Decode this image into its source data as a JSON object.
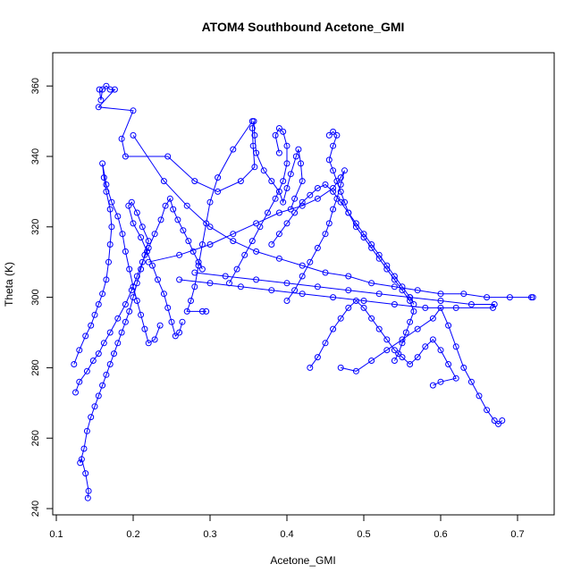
{
  "chart_data": {
    "type": "scatter",
    "title": "ATOM4 Southbound Acetone_GMI",
    "xlabel": "Acetone_GMI",
    "ylabel": "Theta (K)",
    "xlim": [
      0.1,
      0.72
    ],
    "ylim": [
      240,
      365
    ],
    "xticks": [
      "0.1",
      "0.2",
      "0.3",
      "0.4",
      "0.5",
      "0.6",
      "0.7"
    ],
    "yticks": [
      "240",
      "260",
      "280",
      "300",
      "320",
      "340",
      "360"
    ],
    "grid": false,
    "point_marker": "open-circle",
    "line_connects_points": true,
    "color": "#0000ff",
    "series": [
      {
        "values": [
          [
            0.141,
            243
          ],
          [
            0.142,
            245
          ],
          [
            0.138,
            250
          ],
          [
            0.133,
            254
          ],
          [
            0.131,
            253
          ],
          [
            0.136,
            257
          ],
          [
            0.14,
            262
          ],
          [
            0.145,
            266
          ],
          [
            0.15,
            269
          ],
          [
            0.155,
            272
          ],
          [
            0.16,
            275
          ],
          [
            0.165,
            278
          ],
          [
            0.17,
            281
          ],
          [
            0.175,
            284
          ],
          [
            0.18,
            287
          ],
          [
            0.185,
            290
          ],
          [
            0.19,
            293
          ],
          [
            0.195,
            296
          ],
          [
            0.2,
            300
          ],
          [
            0.205,
            304
          ],
          [
            0.21,
            308
          ],
          [
            0.215,
            312
          ],
          [
            0.22,
            316
          ],
          [
            0.212,
            320
          ],
          [
            0.205,
            324
          ],
          [
            0.198,
            327
          ],
          [
            0.194,
            326
          ],
          [
            0.2,
            321
          ],
          [
            0.21,
            317
          ],
          [
            0.218,
            313
          ],
          [
            0.225,
            309
          ],
          [
            0.232,
            305
          ],
          [
            0.24,
            301
          ],
          [
            0.245,
            297
          ],
          [
            0.25,
            293
          ],
          [
            0.255,
            289
          ],
          [
            0.26,
            290
          ],
          [
            0.264,
            293
          ]
        ]
      },
      {
        "values": [
          [
            0.125,
            273
          ],
          [
            0.13,
            276
          ],
          [
            0.14,
            279
          ],
          [
            0.148,
            282
          ],
          [
            0.155,
            284
          ],
          [
            0.162,
            287
          ],
          [
            0.17,
            290
          ],
          [
            0.18,
            294
          ],
          [
            0.19,
            298
          ],
          [
            0.198,
            302
          ],
          [
            0.205,
            306
          ],
          [
            0.212,
            310
          ],
          [
            0.22,
            314
          ],
          [
            0.228,
            318
          ],
          [
            0.236,
            322
          ],
          [
            0.242,
            326
          ],
          [
            0.248,
            328
          ],
          [
            0.252,
            325
          ],
          [
            0.258,
            322
          ],
          [
            0.265,
            319
          ],
          [
            0.272,
            316
          ],
          [
            0.278,
            313
          ],
          [
            0.285,
            310
          ],
          [
            0.29,
            308
          ]
        ]
      },
      {
        "values": [
          [
            0.123,
            281
          ],
          [
            0.13,
            285
          ],
          [
            0.138,
            289
          ],
          [
            0.145,
            292
          ],
          [
            0.15,
            295
          ],
          [
            0.155,
            298
          ],
          [
            0.16,
            301
          ],
          [
            0.165,
            305
          ],
          [
            0.168,
            310
          ],
          [
            0.17,
            315
          ],
          [
            0.172,
            320
          ],
          [
            0.17,
            325
          ],
          [
            0.165,
            330
          ],
          [
            0.162,
            334
          ],
          [
            0.16,
            338
          ],
          [
            0.165,
            332
          ],
          [
            0.172,
            327
          ],
          [
            0.18,
            323
          ],
          [
            0.186,
            318
          ],
          [
            0.19,
            313
          ],
          [
            0.195,
            308
          ],
          [
            0.2,
            303
          ],
          [
            0.205,
            299
          ],
          [
            0.21,
            295
          ],
          [
            0.215,
            291
          ],
          [
            0.22,
            287
          ],
          [
            0.228,
            288
          ],
          [
            0.235,
            292
          ]
        ]
      },
      {
        "values": [
          [
            0.156,
            359
          ],
          [
            0.158,
            356
          ],
          [
            0.16,
            359
          ],
          [
            0.165,
            360
          ],
          [
            0.17,
            359
          ],
          [
            0.176,
            359
          ],
          [
            0.155,
            354
          ],
          [
            0.2,
            353
          ],
          [
            0.185,
            345
          ],
          [
            0.19,
            340
          ],
          [
            0.245,
            340
          ],
          [
            0.28,
            333
          ],
          [
            0.31,
            330
          ],
          [
            0.34,
            333
          ],
          [
            0.358,
            337
          ],
          [
            0.356,
            343
          ],
          [
            0.355,
            348
          ],
          [
            0.357,
            350
          ],
          [
            0.358,
            346
          ],
          [
            0.36,
            341
          ],
          [
            0.37,
            336
          ],
          [
            0.38,
            333
          ],
          [
            0.39,
            330
          ],
          [
            0.395,
            327
          ],
          [
            0.4,
            331
          ],
          [
            0.405,
            335
          ],
          [
            0.412,
            340
          ],
          [
            0.415,
            342
          ],
          [
            0.418,
            338
          ],
          [
            0.42,
            333
          ],
          [
            0.41,
            328
          ],
          [
            0.405,
            325
          ]
        ]
      },
      {
        "values": [
          [
            0.2,
            346
          ],
          [
            0.24,
            333
          ],
          [
            0.27,
            326
          ],
          [
            0.3,
            320
          ],
          [
            0.33,
            316
          ],
          [
            0.36,
            313
          ],
          [
            0.39,
            311
          ],
          [
            0.42,
            309
          ],
          [
            0.45,
            307
          ],
          [
            0.48,
            306
          ],
          [
            0.51,
            304
          ],
          [
            0.54,
            303
          ],
          [
            0.57,
            302
          ],
          [
            0.6,
            301
          ],
          [
            0.63,
            301
          ],
          [
            0.66,
            300
          ],
          [
            0.69,
            300
          ],
          [
            0.72,
            300
          ],
          [
            0.718,
            300
          ]
        ]
      },
      {
        "values": [
          [
            0.28,
            307
          ],
          [
            0.32,
            306
          ],
          [
            0.36,
            305
          ],
          [
            0.4,
            304
          ],
          [
            0.44,
            303
          ],
          [
            0.48,
            302
          ],
          [
            0.52,
            301
          ],
          [
            0.56,
            300
          ],
          [
            0.6,
            299
          ],
          [
            0.64,
            298
          ],
          [
            0.67,
            298
          ],
          [
            0.668,
            297
          ],
          [
            0.62,
            297
          ],
          [
            0.58,
            297
          ],
          [
            0.54,
            298
          ],
          [
            0.5,
            299
          ],
          [
            0.46,
            300
          ],
          [
            0.42,
            301
          ],
          [
            0.38,
            302
          ],
          [
            0.34,
            303
          ],
          [
            0.3,
            304
          ],
          [
            0.26,
            305
          ]
        ]
      },
      {
        "values": [
          [
            0.22,
            310
          ],
          [
            0.26,
            312
          ],
          [
            0.3,
            315
          ],
          [
            0.33,
            318
          ],
          [
            0.36,
            321
          ],
          [
            0.39,
            324
          ],
          [
            0.42,
            326
          ],
          [
            0.44,
            328
          ],
          [
            0.46,
            331
          ],
          [
            0.47,
            334
          ],
          [
            0.475,
            336
          ],
          [
            0.47,
            332
          ],
          [
            0.465,
            328
          ],
          [
            0.46,
            325
          ],
          [
            0.455,
            321
          ],
          [
            0.45,
            318
          ],
          [
            0.44,
            314
          ],
          [
            0.43,
            310
          ],
          [
            0.42,
            306
          ],
          [
            0.41,
            302
          ],
          [
            0.4,
            299
          ]
        ]
      },
      {
        "values": [
          [
            0.455,
            346
          ],
          [
            0.46,
            347
          ],
          [
            0.465,
            346
          ],
          [
            0.46,
            343
          ],
          [
            0.455,
            339
          ],
          [
            0.46,
            336
          ],
          [
            0.465,
            333
          ],
          [
            0.47,
            330
          ],
          [
            0.475,
            327
          ],
          [
            0.48,
            324
          ],
          [
            0.49,
            320
          ],
          [
            0.5,
            317
          ],
          [
            0.51,
            314
          ],
          [
            0.52,
            311
          ],
          [
            0.53,
            308
          ],
          [
            0.54,
            305
          ],
          [
            0.55,
            302
          ],
          [
            0.56,
            299
          ],
          [
            0.565,
            296
          ],
          [
            0.56,
            293
          ],
          [
            0.555,
            290
          ],
          [
            0.55,
            287
          ],
          [
            0.545,
            284
          ],
          [
            0.54,
            282
          ]
        ]
      },
      {
        "values": [
          [
            0.43,
            280
          ],
          [
            0.44,
            283
          ],
          [
            0.45,
            287
          ],
          [
            0.46,
            291
          ],
          [
            0.47,
            294
          ],
          [
            0.48,
            297
          ],
          [
            0.49,
            299
          ],
          [
            0.5,
            297
          ],
          [
            0.51,
            294
          ],
          [
            0.52,
            291
          ],
          [
            0.53,
            288
          ],
          [
            0.54,
            285
          ],
          [
            0.55,
            283
          ],
          [
            0.56,
            281
          ],
          [
            0.57,
            283
          ],
          [
            0.58,
            286
          ],
          [
            0.59,
            288
          ],
          [
            0.6,
            285
          ],
          [
            0.61,
            281
          ],
          [
            0.62,
            277
          ],
          [
            0.6,
            276
          ],
          [
            0.59,
            275
          ]
        ]
      },
      {
        "values": [
          [
            0.47,
            280
          ],
          [
            0.49,
            279
          ],
          [
            0.51,
            282
          ],
          [
            0.53,
            285
          ],
          [
            0.55,
            288
          ],
          [
            0.57,
            291
          ],
          [
            0.59,
            294
          ],
          [
            0.6,
            297
          ],
          [
            0.61,
            292
          ],
          [
            0.62,
            286
          ],
          [
            0.63,
            280
          ],
          [
            0.64,
            276
          ],
          [
            0.65,
            272
          ],
          [
            0.66,
            268
          ],
          [
            0.67,
            265
          ],
          [
            0.675,
            264
          ],
          [
            0.68,
            265
          ]
        ]
      },
      {
        "values": [
          [
            0.38,
            315
          ],
          [
            0.39,
            318
          ],
          [
            0.4,
            321
          ],
          [
            0.41,
            324
          ],
          [
            0.42,
            327
          ],
          [
            0.43,
            329
          ],
          [
            0.44,
            331
          ],
          [
            0.45,
            332
          ],
          [
            0.46,
            330
          ],
          [
            0.47,
            327
          ],
          [
            0.48,
            324
          ],
          [
            0.49,
            321
          ],
          [
            0.5,
            318
          ],
          [
            0.51,
            315
          ],
          [
            0.52,
            312
          ],
          [
            0.53,
            309
          ],
          [
            0.54,
            306
          ],
          [
            0.55,
            303
          ],
          [
            0.56,
            300
          ],
          [
            0.565,
            298
          ]
        ]
      },
      {
        "values": [
          [
            0.355,
            350
          ],
          [
            0.33,
            342
          ],
          [
            0.31,
            334
          ],
          [
            0.3,
            327
          ],
          [
            0.295,
            321
          ],
          [
            0.29,
            315
          ],
          [
            0.285,
            309
          ],
          [
            0.28,
            303
          ],
          [
            0.275,
            299
          ],
          [
            0.27,
            296
          ],
          [
            0.29,
            296
          ],
          [
            0.295,
            296
          ]
        ]
      },
      {
        "values": [
          [
            0.39,
            341
          ],
          [
            0.385,
            346
          ],
          [
            0.39,
            348
          ],
          [
            0.395,
            347
          ],
          [
            0.4,
            343
          ],
          [
            0.4,
            338
          ],
          [
            0.395,
            333
          ],
          [
            0.385,
            328
          ],
          [
            0.375,
            324
          ],
          [
            0.365,
            320
          ],
          [
            0.355,
            316
          ],
          [
            0.345,
            312
          ],
          [
            0.335,
            308
          ],
          [
            0.325,
            304
          ]
        ]
      }
    ]
  }
}
